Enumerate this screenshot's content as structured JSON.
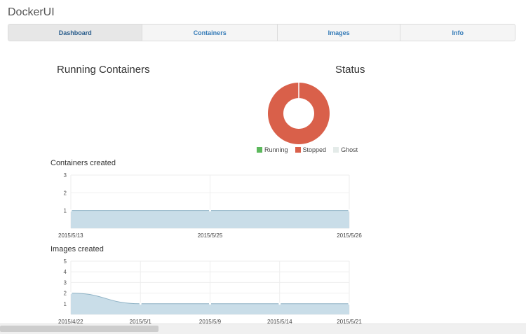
{
  "app": {
    "title": "DockerUI"
  },
  "nav": {
    "tabs": [
      {
        "label": "Dashboard",
        "active": true
      },
      {
        "label": "Containers",
        "active": false
      },
      {
        "label": "Images",
        "active": false
      },
      {
        "label": "Info",
        "active": false
      }
    ]
  },
  "dashboard": {
    "running_title": "Running Containers",
    "status_title": "Status"
  },
  "colors": {
    "running": "#5cb85c",
    "stopped": "#d9604a",
    "ghost": "#e4ebe9",
    "area_fill": "#c9dde8",
    "area_line": "#8fb3c6",
    "grid": "#eeeeee",
    "link": "#337ab7"
  },
  "chart_data": [
    {
      "type": "pie",
      "variant": "doughnut",
      "title": "Status",
      "categories": [
        "Running",
        "Stopped",
        "Ghost"
      ],
      "values": [
        0,
        1,
        0
      ],
      "legend_position": "bottom"
    },
    {
      "type": "area",
      "title": "Containers created",
      "x": [
        "2015/5/13",
        "2015/5/25",
        "2015/5/26"
      ],
      "series": [
        {
          "values": [
            1,
            1,
            1
          ]
        }
      ],
      "yticks": [
        1,
        2,
        3
      ],
      "ylim": [
        0,
        3
      ],
      "grid": true
    },
    {
      "type": "area",
      "title": "Images created",
      "x": [
        "2015/4/22",
        "2015/5/1",
        "2015/5/9",
        "2015/5/14",
        "2015/5/21"
      ],
      "series": [
        {
          "values": [
            2,
            1,
            1,
            1,
            1
          ]
        }
      ],
      "yticks": [
        1,
        2,
        3,
        4,
        5
      ],
      "ylim": [
        0,
        5
      ],
      "grid": true
    }
  ]
}
